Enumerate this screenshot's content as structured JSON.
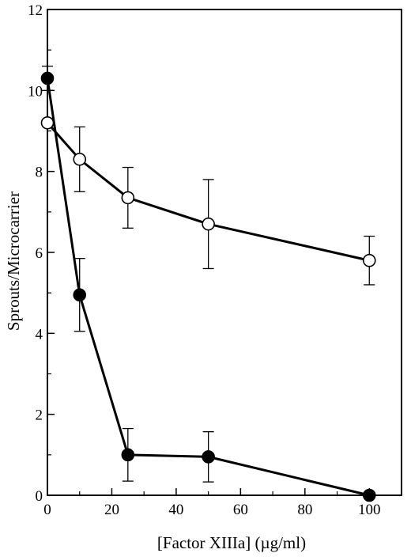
{
  "chart_data": {
    "type": "line",
    "xlabel": "[Factor XIIIa] (µg/ml)",
    "ylabel": "Sprouts/Microcarrier",
    "xlim": [
      0,
      110
    ],
    "ylim": [
      0,
      12
    ],
    "xticks": [
      0,
      20,
      40,
      60,
      80,
      100
    ],
    "yticks": [
      0,
      2,
      4,
      6,
      8,
      10,
      12
    ],
    "grid": false,
    "series": [
      {
        "marker": "filled-circle",
        "color": "#000000",
        "points": [
          {
            "x": 0,
            "y": 10.3,
            "err": 0.3
          },
          {
            "x": 10,
            "y": 4.95,
            "err": 0.9
          },
          {
            "x": 25,
            "y": 1.0,
            "err": 0.65
          },
          {
            "x": 50,
            "y": 0.95,
            "err": 0.62
          },
          {
            "x": 100,
            "y": 0.0,
            "err": 0
          }
        ]
      },
      {
        "marker": "open-circle",
        "color": "#000000",
        "points": [
          {
            "x": 0,
            "y": 9.2,
            "err": 0
          },
          {
            "x": 10,
            "y": 8.3,
            "err": 0.8
          },
          {
            "x": 25,
            "y": 7.35,
            "err": 0.75
          },
          {
            "x": 50,
            "y": 6.7,
            "err": 1.1
          },
          {
            "x": 100,
            "y": 5.8,
            "err": 0.6
          }
        ]
      }
    ]
  }
}
